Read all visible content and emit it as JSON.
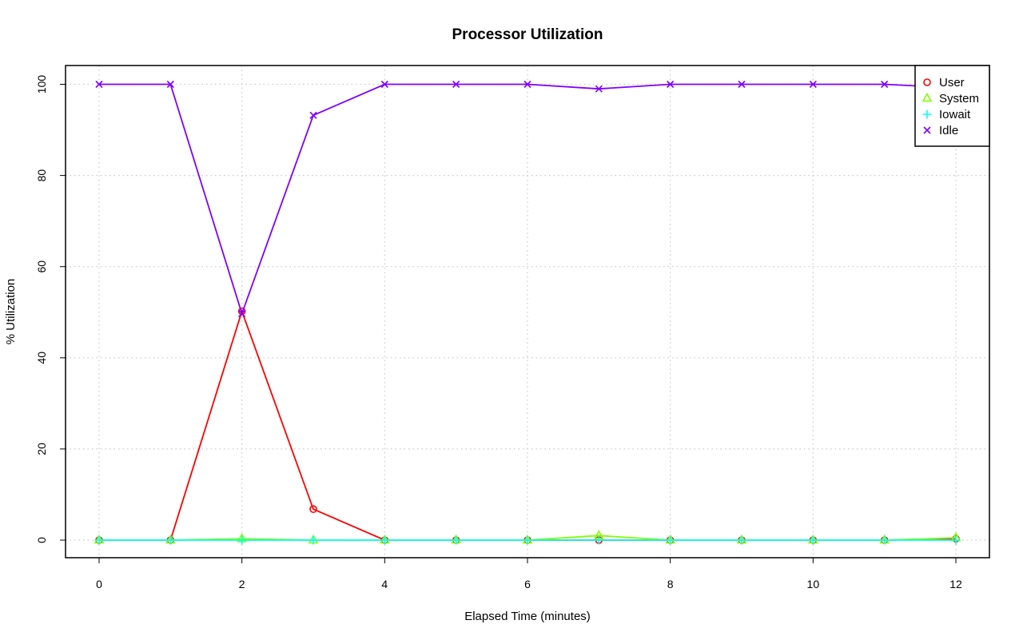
{
  "chart_data": {
    "type": "line",
    "title": "Processor Utilization",
    "xlabel": "Elapsed Time (minutes)",
    "ylabel": "% Utilization",
    "xlim": [
      -0.5,
      12.5
    ],
    "ylim": [
      -4,
      104
    ],
    "xticks": [
      0,
      2,
      4,
      6,
      8,
      10,
      12
    ],
    "yticks": [
      0,
      20,
      40,
      60,
      80,
      100
    ],
    "grid": true,
    "legend_position": "top-right",
    "x": [
      0,
      1,
      2,
      3,
      4,
      5,
      6,
      7,
      8,
      9,
      10,
      11,
      12
    ],
    "series": [
      {
        "name": "User",
        "color": "#ff0000",
        "marker": "circle",
        "values": [
          0,
          0,
          50.2,
          6.8,
          0,
          0,
          0,
          0,
          0,
          0,
          0,
          0,
          0.3
        ]
      },
      {
        "name": "System",
        "color": "#80ff00",
        "marker": "triangle",
        "values": [
          0,
          0,
          0.3,
          0,
          0,
          0,
          0,
          1.0,
          0,
          0,
          0,
          0,
          0.5
        ]
      },
      {
        "name": "Iowait",
        "color": "#00ffff",
        "marker": "plus",
        "values": [
          0,
          0,
          0,
          0,
          0,
          0,
          0,
          0,
          0,
          0,
          0,
          0,
          0
        ]
      },
      {
        "name": "Idle",
        "color": "#8000ff",
        "marker": "cross",
        "values": [
          100,
          100,
          49.7,
          93.2,
          100,
          100,
          100,
          99.0,
          100,
          100,
          100,
          100,
          99.2
        ]
      }
    ]
  }
}
